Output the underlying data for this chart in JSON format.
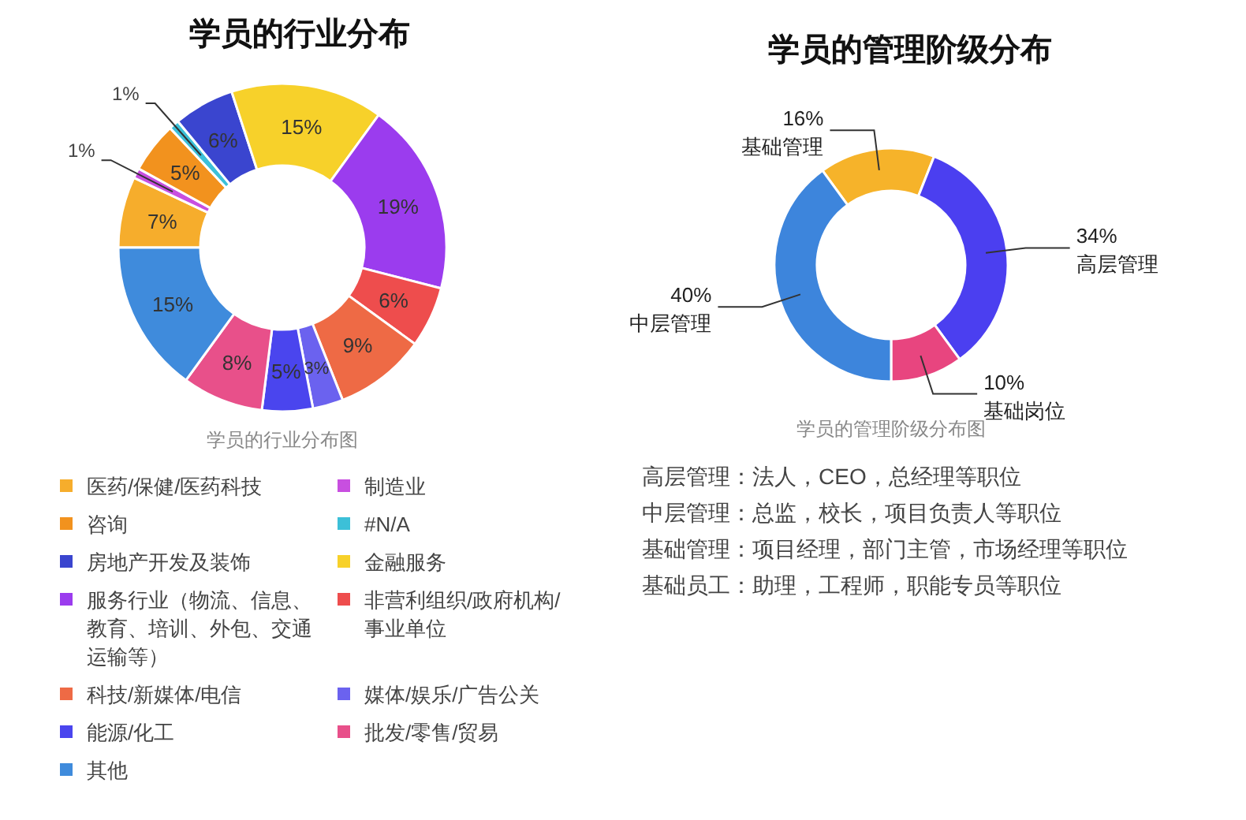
{
  "chart_data": [
    {
      "type": "donut",
      "title": "学员的行业分布",
      "categories": [
        "医药/保健/医药科技",
        "制造业",
        "咨询",
        "#N/A",
        "房地产开发及装饰",
        "金融服务",
        "服务行业（物流、信息、教育、培训、外包、交通运输等）",
        "非营利组织/政府机构/事业单位",
        "科技/新媒体/电信",
        "媒体/娱乐/广告公关",
        "能源/化工",
        "批发/零售/贸易",
        "其他"
      ],
      "values": [
        7,
        1,
        5,
        1,
        6,
        15,
        19,
        6,
        9,
        3,
        5,
        8,
        15
      ],
      "colors": [
        "#f6ad2c",
        "#c84fe0",
        "#f2921e",
        "#3cc0d8",
        "#3a45cf",
        "#f7d12a",
        "#9b3cee",
        "#ee4d4d",
        "#ee6a45",
        "#6b62ef",
        "#4a45ee",
        "#e8508a",
        "#3f8bdc"
      ],
      "value_labels": [
        "7%",
        "1%",
        "5%",
        "1%",
        "6%",
        "15%",
        "19%",
        "6%",
        "9%",
        "3%",
        "5%",
        "8%",
        "15%"
      ],
      "legend": "bottom",
      "annotations": [
        "学员的行业分布图"
      ]
    },
    {
      "type": "donut",
      "title": "学员的管理阶级分布",
      "categories": [
        "基础管理",
        "高层管理",
        "基础岗位",
        "中层管理"
      ],
      "values": [
        16,
        34,
        10,
        40
      ],
      "colors": [
        "#f6b32a",
        "#4b3ff0",
        "#e8457f",
        "#3d85dc"
      ],
      "value_labels": [
        "16%",
        "34%",
        "10%",
        "40%"
      ],
      "annotations": [
        "学员的管理阶级分布图",
        "高层管理：法人，CEO，总经理等职位",
        "中层管理：总监，校长，项目负责人等职位",
        "基础管理：项目经理，部门主管，市场经理等职位",
        "基础员工：助理，工程师，职能专员等职位"
      ]
    }
  ]
}
